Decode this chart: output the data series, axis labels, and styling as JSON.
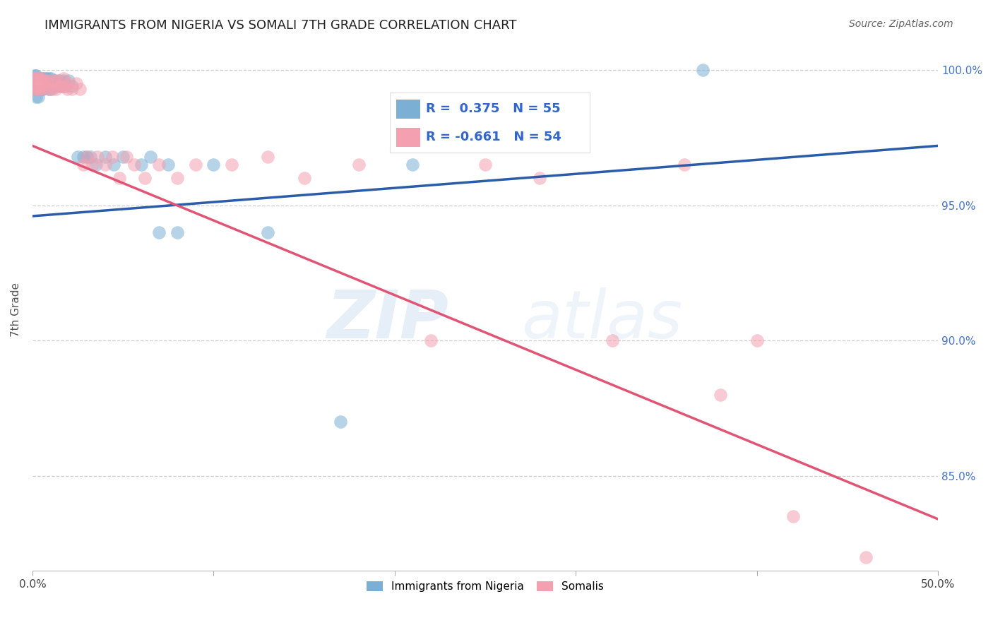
{
  "title": "IMMIGRANTS FROM NIGERIA VS SOMALI 7TH GRADE CORRELATION CHART",
  "source": "Source: ZipAtlas.com",
  "ylabel": "7th Grade",
  "ytick_labels": [
    "100.0%",
    "95.0%",
    "90.0%",
    "85.0%"
  ],
  "ytick_values": [
    1.0,
    0.95,
    0.9,
    0.85
  ],
  "xlim": [
    0.0,
    0.5
  ],
  "ylim": [
    0.815,
    1.008
  ],
  "legend_r_nigeria": "R =  0.375",
  "legend_n_nigeria": "N = 55",
  "legend_r_somali": "R = -0.661",
  "legend_n_somali": "N = 54",
  "color_nigeria": "#7bafd4",
  "color_somali": "#f4a0b0",
  "color_nigeria_line": "#2a5caa",
  "color_somali_line": "#e05575",
  "nigeria_x": [
    0.001,
    0.001,
    0.001,
    0.002,
    0.002,
    0.002,
    0.002,
    0.003,
    0.003,
    0.003,
    0.003,
    0.004,
    0.004,
    0.004,
    0.005,
    0.005,
    0.005,
    0.006,
    0.006,
    0.007,
    0.007,
    0.008,
    0.008,
    0.009,
    0.009,
    0.01,
    0.01,
    0.011,
    0.012,
    0.013,
    0.014,
    0.015,
    0.016,
    0.017,
    0.018,
    0.02,
    0.022,
    0.025,
    0.028,
    0.03,
    0.032,
    0.035,
    0.04,
    0.045,
    0.05,
    0.06,
    0.065,
    0.07,
    0.075,
    0.08,
    0.1,
    0.13,
    0.17,
    0.21,
    0.37
  ],
  "nigeria_y": [
    0.998,
    0.996,
    0.993,
    0.998,
    0.995,
    0.993,
    0.99,
    0.997,
    0.995,
    0.993,
    0.99,
    0.997,
    0.995,
    0.993,
    0.997,
    0.995,
    0.993,
    0.997,
    0.993,
    0.997,
    0.994,
    0.997,
    0.994,
    0.997,
    0.993,
    0.997,
    0.993,
    0.995,
    0.996,
    0.994,
    0.995,
    0.996,
    0.994,
    0.996,
    0.994,
    0.996,
    0.994,
    0.968,
    0.968,
    0.968,
    0.968,
    0.965,
    0.968,
    0.965,
    0.968,
    0.965,
    0.968,
    0.94,
    0.965,
    0.94,
    0.965,
    0.94,
    0.87,
    0.965,
    1.0
  ],
  "somali_x": [
    0.001,
    0.001,
    0.002,
    0.002,
    0.003,
    0.003,
    0.004,
    0.004,
    0.005,
    0.005,
    0.006,
    0.007,
    0.008,
    0.009,
    0.01,
    0.011,
    0.012,
    0.013,
    0.014,
    0.015,
    0.016,
    0.017,
    0.018,
    0.019,
    0.02,
    0.022,
    0.024,
    0.026,
    0.028,
    0.03,
    0.033,
    0.036,
    0.04,
    0.044,
    0.048,
    0.052,
    0.056,
    0.062,
    0.07,
    0.08,
    0.09,
    0.11,
    0.13,
    0.15,
    0.18,
    0.22,
    0.25,
    0.28,
    0.32,
    0.36,
    0.38,
    0.4,
    0.42,
    0.46
  ],
  "somali_y": [
    0.997,
    0.993,
    0.997,
    0.993,
    0.997,
    0.993,
    0.997,
    0.993,
    0.997,
    0.993,
    0.996,
    0.994,
    0.996,
    0.993,
    0.996,
    0.993,
    0.996,
    0.993,
    0.996,
    0.994,
    0.994,
    0.997,
    0.994,
    0.993,
    0.995,
    0.993,
    0.995,
    0.993,
    0.965,
    0.968,
    0.965,
    0.968,
    0.965,
    0.968,
    0.96,
    0.968,
    0.965,
    0.96,
    0.965,
    0.96,
    0.965,
    0.965,
    0.968,
    0.96,
    0.965,
    0.9,
    0.965,
    0.96,
    0.9,
    0.965,
    0.88,
    0.9,
    0.835,
    0.82
  ],
  "nigeria_line_x": [
    0.0,
    0.5
  ],
  "nigeria_line_y": [
    0.946,
    0.972
  ],
  "somali_line_x": [
    0.0,
    0.5
  ],
  "somali_line_y": [
    0.972,
    0.834
  ],
  "watermark_zip": "ZIP",
  "watermark_atlas": "atlas",
  "background_color": "#ffffff",
  "grid_color": "#cccccc",
  "title_fontsize": 13,
  "source_fontsize": 10
}
